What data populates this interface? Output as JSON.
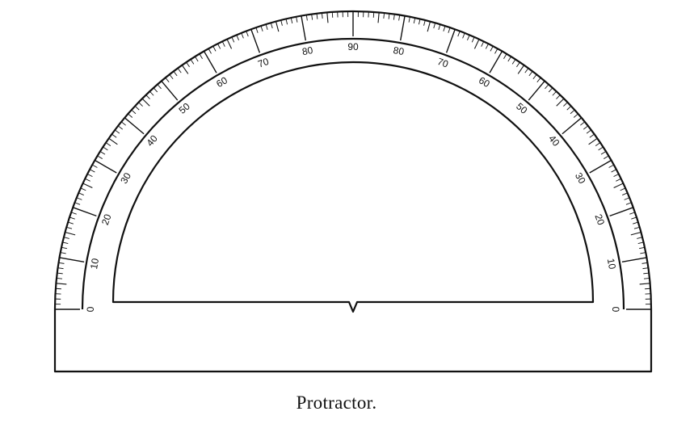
{
  "figure": {
    "caption": "Protractor.",
    "stroke_color": "#111111",
    "background_color": "#ffffff"
  },
  "scale": {
    "start_degree": 0,
    "end_degree": 180,
    "label_values_left_to_right": [
      0,
      10,
      20,
      30,
      40,
      50,
      60,
      70,
      80,
      90,
      80,
      70,
      60,
      50,
      40,
      30,
      20,
      10,
      0
    ],
    "minor_tick_step_degrees": 1,
    "medium_tick_step_degrees": 5,
    "major_tick_step_degrees": 10
  }
}
